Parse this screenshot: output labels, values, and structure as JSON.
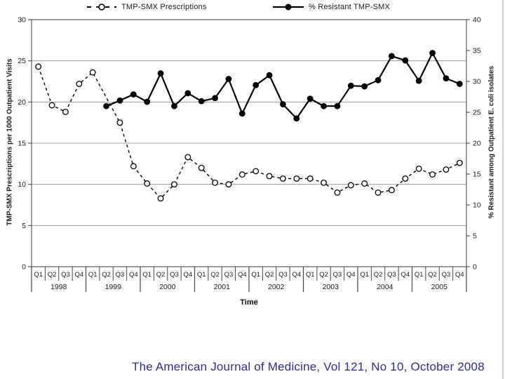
{
  "caption": "The American Journal of Medicine, Vol 121, No 10, October 2008",
  "colors": {
    "caption_text": "#2e2e8e",
    "grid_line": "#9a9a9a",
    "axis_frame": "#595959",
    "series_line": "#000000",
    "slide_edge": "#cdd3cb"
  },
  "legend": {
    "series1_label": "TMP-SMX Prescriptions",
    "series2_label": "% Resistant TMP-SMX"
  },
  "chart_data": {
    "type": "line",
    "title": "",
    "legend_position": "top",
    "grid": true,
    "x_axis": {
      "title": "Time",
      "years": [
        "1998",
        "1999",
        "2000",
        "2001",
        "2002",
        "2003",
        "2004",
        "2005"
      ],
      "quarters_per_year": [
        "Q1",
        "Q2",
        "Q3",
        "Q4"
      ]
    },
    "left_axis": {
      "title": "TMP-SMX Prescriptions per 1000 Outpatient Visits",
      "range": [
        0,
        30
      ],
      "tick_step": 5
    },
    "right_axis": {
      "title": "% Resistant among Outpatient E. coli isolates",
      "range": [
        0,
        40
      ],
      "tick_step": 5
    },
    "series": [
      {
        "name": "TMP-SMX Prescriptions",
        "axis": "left",
        "line_style": "dashed",
        "marker": "open-circle",
        "color": "#000000",
        "values": [
          24.3,
          19.6,
          18.8,
          22.2,
          23.6,
          null,
          17.5,
          12.2,
          10.1,
          8.3,
          10.0,
          13.3,
          12.0,
          10.2,
          10.0,
          11.2,
          11.6,
          11.0,
          10.7,
          10.7,
          10.7,
          10.2,
          9.0,
          9.9,
          10.1,
          9.0,
          9.3,
          10.7,
          11.9,
          11.2,
          11.8,
          12.6
        ]
      },
      {
        "name": "% Resistant TMP-SMX",
        "axis": "right",
        "line_style": "solid",
        "marker": "filled-circle",
        "color": "#000000",
        "values": [
          null,
          null,
          null,
          null,
          null,
          26.0,
          26.9,
          27.9,
          26.7,
          31.3,
          26.0,
          28.1,
          26.8,
          27.3,
          30.4,
          24.8,
          29.4,
          31.0,
          26.3,
          24.0,
          27.2,
          26.0,
          26.0,
          29.3,
          29.2,
          30.2,
          34.1,
          33.4,
          30.1,
          34.6,
          30.5,
          29.6
        ]
      }
    ]
  }
}
